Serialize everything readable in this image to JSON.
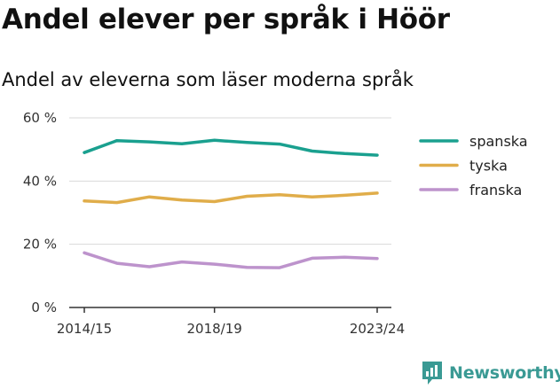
{
  "header": {
    "title": "Andel elever per språk i Höör",
    "subtitle": "Andel av eleverna som läser moderna språk"
  },
  "brand": {
    "name": "Newsworthy",
    "color": "#3a9a94"
  },
  "chart_data": {
    "type": "line",
    "x": [
      "2014/15",
      "2015/16",
      "2016/17",
      "2017/18",
      "2018/19",
      "2019/20",
      "2020/21",
      "2021/22",
      "2022/23",
      "2023/24"
    ],
    "x_tick_labels": [
      "2014/15",
      "2018/19",
      "2023/24"
    ],
    "y_tick_labels": [
      "0 %",
      "20 %",
      "40 %",
      "60 %"
    ],
    "ylim": [
      0,
      60
    ],
    "grid": true,
    "legend_position": "right",
    "series": [
      {
        "name": "spanska",
        "color": "#1aa08f",
        "values": [
          49.0,
          52.8,
          52.4,
          51.8,
          52.9,
          52.2,
          51.7,
          49.5,
          48.7,
          48.2
        ]
      },
      {
        "name": "tyska",
        "color": "#e0ad4a",
        "values": [
          33.7,
          33.2,
          35.0,
          34.0,
          33.5,
          35.2,
          35.7,
          35.0,
          35.5,
          36.2
        ]
      },
      {
        "name": "franska",
        "color": "#bd93cc",
        "values": [
          17.3,
          14.0,
          12.9,
          14.4,
          13.7,
          12.7,
          12.6,
          15.6,
          15.9,
          15.5
        ]
      }
    ]
  }
}
